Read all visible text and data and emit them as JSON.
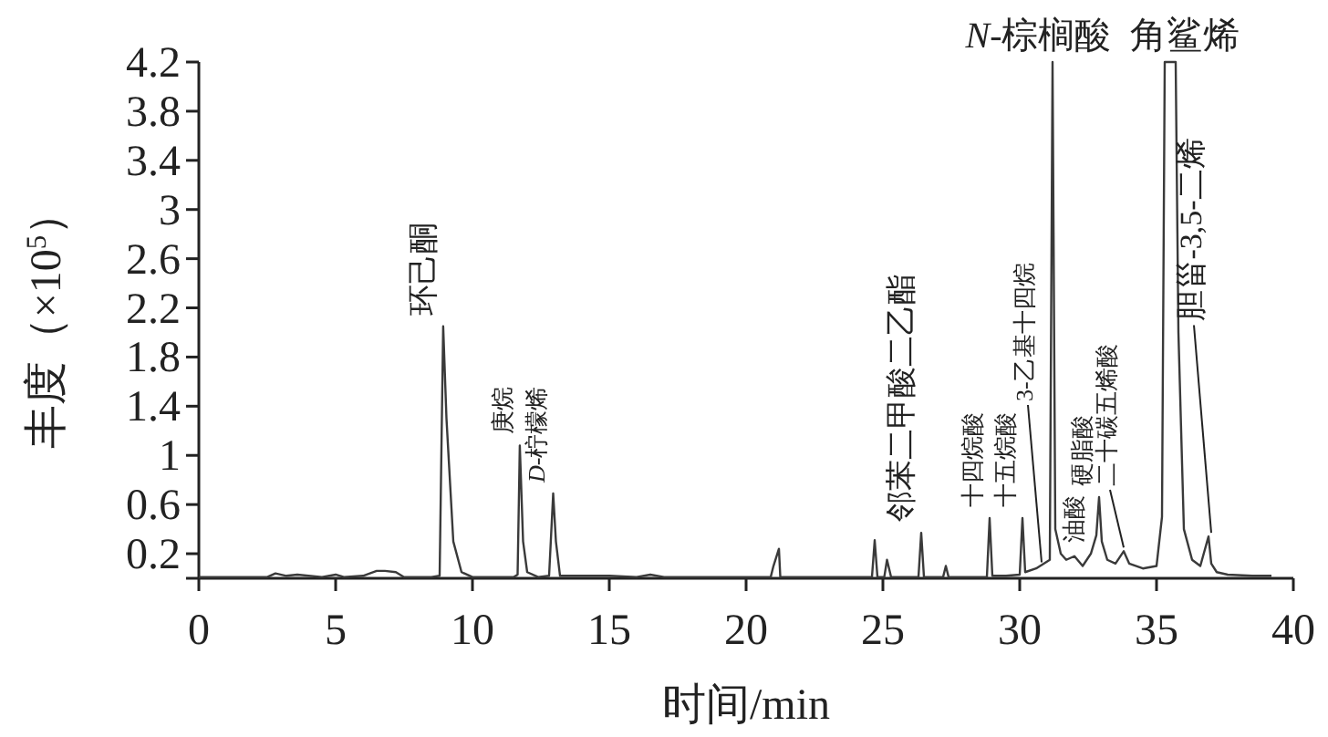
{
  "chart_data": {
    "type": "line",
    "xlabel": "时间/min",
    "ylabel": "丰度（×10$^{5}$）",
    "color": "#3a3a3a",
    "grid": false,
    "legend": false,
    "marker": "none",
    "line_style": "solid",
    "x": [
      0,
      2.5,
      2.8,
      3.2,
      3.6,
      4.5,
      5.0,
      5.3,
      6.0,
      6.5,
      6.8,
      7.2,
      7.5,
      8.5,
      8.8,
      8.93,
      9.05,
      9.3,
      9.6,
      10.0,
      11.0,
      11.5,
      11.65,
      11.73,
      11.85,
      12.0,
      12.4,
      12.8,
      12.95,
      13.05,
      13.2,
      14.0,
      15.0,
      16.0,
      16.5,
      17,
      20.9,
      21.0,
      21.2,
      21.25,
      22,
      24.6,
      24.7,
      24.8,
      25.05,
      25.15,
      25.3,
      26.3,
      26.4,
      26.5,
      27.2,
      27.3,
      27.4,
      28.8,
      28.9,
      29.0,
      29.5,
      30.0,
      30.1,
      30.2,
      30.6,
      31.1,
      31.2,
      31.3,
      31.5,
      31.7,
      32.0,
      32.3,
      32.6,
      32.8,
      32.9,
      33.0,
      33.2,
      33.5,
      33.8,
      34.0,
      34.5,
      35.0,
      35.2,
      35.3,
      35.5,
      35.7,
      35.8,
      36.0,
      36.3,
      36.6,
      36.9,
      37.0,
      37.2,
      37.6,
      38.5,
      39.2
    ],
    "values": [
      0.01,
      0.01,
      0.04,
      0.02,
      0.03,
      0.01,
      0.03,
      0.01,
      0.02,
      0.06,
      0.06,
      0.05,
      0.01,
      0.01,
      0.02,
      2.05,
      1.3,
      0.3,
      0.05,
      0.01,
      0.01,
      0.01,
      0.03,
      1.08,
      0.3,
      0.05,
      0.01,
      0.02,
      0.69,
      0.3,
      0.02,
      0.02,
      0.02,
      0.01,
      0.03,
      0.01,
      0.01,
      0.1,
      0.24,
      0.01,
      0.01,
      0.01,
      0.31,
      0.01,
      0.01,
      0.15,
      0.01,
      0.01,
      0.37,
      0.01,
      0.01,
      0.1,
      0.01,
      0.01,
      0.49,
      0.02,
      0.02,
      0.03,
      0.49,
      0.05,
      0.08,
      0.15,
      4.2,
      0.4,
      0.2,
      0.15,
      0.18,
      0.1,
      0.2,
      0.35,
      0.66,
      0.3,
      0.15,
      0.12,
      0.22,
      0.12,
      0.08,
      0.1,
      0.5,
      4.2,
      4.2,
      4.2,
      2.0,
      0.4,
      0.15,
      0.1,
      0.34,
      0.12,
      0.05,
      0.03,
      0.02,
      0.02
    ],
    "xlim": [
      0,
      40
    ],
    "xticks": [
      0,
      5,
      10,
      15,
      20,
      25,
      30,
      35,
      40
    ],
    "ylim": [
      0,
      4.2
    ],
    "yticks": [
      {
        "value": 0,
        "label": null
      },
      0.2,
      0.6,
      1.0,
      1.4,
      1.8,
      2.2,
      2.6,
      3.0,
      3.4,
      3.8,
      4.2
    ],
    "annotations": [
      {
        "text": "环己酮",
        "x": 8.93,
        "y": 2.05
      },
      {
        "text": "庚烷",
        "x": 11.73,
        "y": 1.08
      },
      {
        "text": "*D*-柠檬烯",
        "x": 12.95,
        "y": 0.69
      },
      {
        "text": "邻苯二甲酸二乙酯",
        "x": 26.4,
        "y": 0.37
      },
      {
        "text": "十四烷酸",
        "x": 28.9,
        "y": 0.49
      },
      {
        "text": "十五烷酸",
        "x": 30.1,
        "y": 0.49
      },
      {
        "text": "3-乙基十四烷",
        "x": 30.8,
        "y": 0.1
      },
      {
        "text": "*N*-棕榈酸",
        "x": 31.2,
        "y": 4.2
      },
      {
        "text": "油酸",
        "x": 32.6,
        "y": 0.2
      },
      {
        "text": "硬脂酸",
        "x": 32.9,
        "y": 0.66
      },
      {
        "text": "二十碳五烯酸",
        "x": 33.8,
        "y": 0.22
      },
      {
        "text": "角鲨烯",
        "x": 35.5,
        "y": 4.2
      },
      {
        "text": "胆甾-3,5-二烯",
        "x": 37.0,
        "y": 0.34
      }
    ]
  }
}
